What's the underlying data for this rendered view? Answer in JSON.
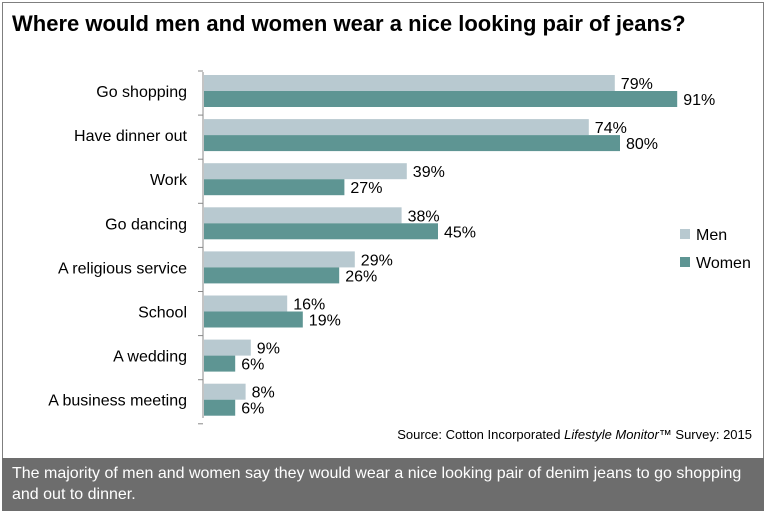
{
  "chart_data": {
    "type": "bar",
    "orientation": "horizontal",
    "title": "Where would men and women wear a nice looking pair of jeans?",
    "categories": [
      "Go shopping",
      "Have dinner out",
      "Work",
      "Go dancing",
      "A religious service",
      "School",
      "A wedding",
      "A business meeting"
    ],
    "series": [
      {
        "name": "Men",
        "color": "#b8c9d0",
        "values": [
          79,
          74,
          39,
          38,
          29,
          16,
          9,
          8
        ]
      },
      {
        "name": "Women",
        "color": "#5e9593",
        "values": [
          91,
          80,
          27,
          45,
          26,
          19,
          6,
          6
        ]
      }
    ],
    "value_suffix": "%",
    "xlim": [
      0,
      100
    ],
    "grid": false,
    "legend_position": "right"
  },
  "source": {
    "prefix": "Source: Cotton Incorporated ",
    "italic": "Lifestyle Monitor",
    "suffix": "™ Survey: 2015"
  },
  "footer": {
    "text": "The majority of men and women say they would wear a nice looking pair of denim jeans to go shopping and out to dinner."
  }
}
